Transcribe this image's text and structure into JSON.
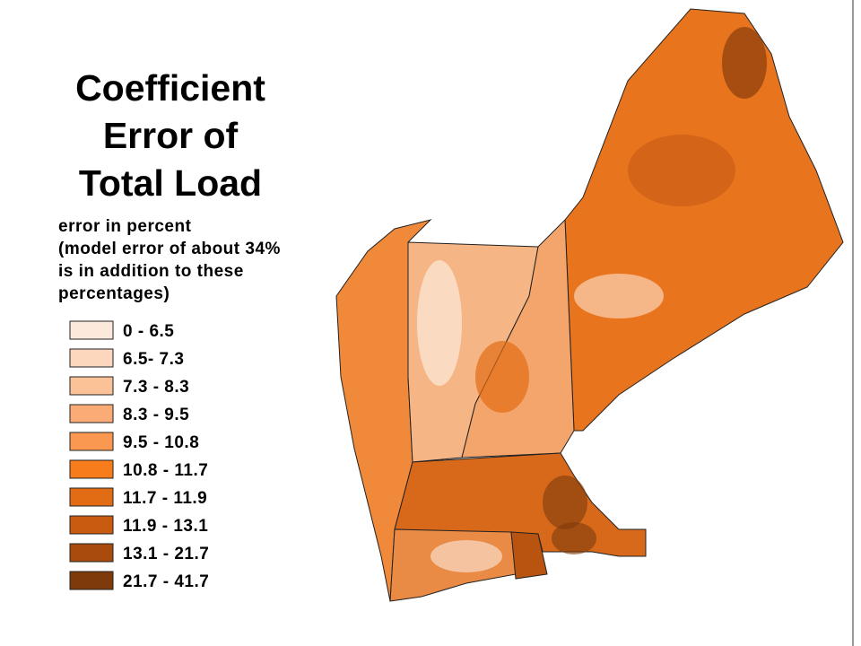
{
  "title_lines": [
    "Coefficient",
    "Error of",
    "Total Load"
  ],
  "subtitle_lines": [
    "error in percent",
    "(model error of about 34%",
    "is in addition to these",
    "percentages)"
  ],
  "legend": [
    {
      "label": "0 - 6.5",
      "color": "#fde9dc"
    },
    {
      "label": "6.5- 7.3",
      "color": "#fcd6bd"
    },
    {
      "label": "7.3 - 8.3",
      "color": "#fbc197"
    },
    {
      "label": "8.3 - 9.5",
      "color": "#fbac76"
    },
    {
      "label": "9.5 - 10.8",
      "color": "#fa9852"
    },
    {
      "label": "10.8 - 11.7",
      "color": "#f67c1c"
    },
    {
      "label": "11.7 - 11.9",
      "color": "#e26c14"
    },
    {
      "label": "11.9 - 13.1",
      "color": "#c95b10"
    },
    {
      "label": "13.1 - 21.7",
      "color": "#a84b0d"
    },
    {
      "label": "21.7 - 41.7",
      "color": "#7f3a0b"
    }
  ]
}
